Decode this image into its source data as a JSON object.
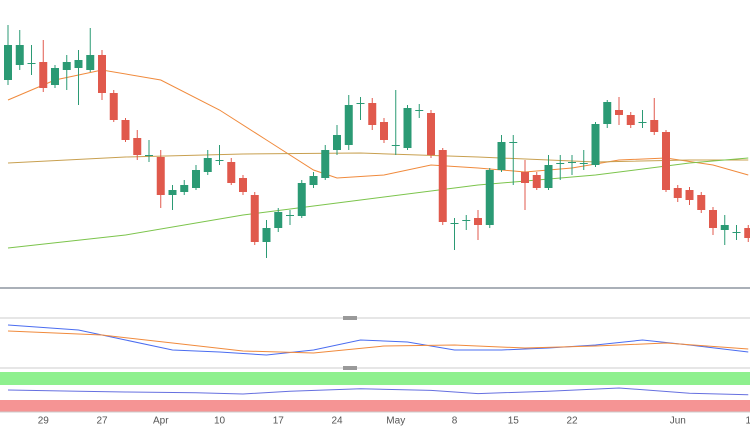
{
  "chart_data": [
    {
      "type": "candlestick",
      "categories": [
        null,
        null,
        null,
        "29",
        null,
        null,
        null,
        null,
        "27",
        null,
        null,
        null,
        null,
        "Apr",
        null,
        null,
        null,
        null,
        "10",
        null,
        null,
        null,
        null,
        "17",
        null,
        null,
        null,
        null,
        "24",
        null,
        null,
        null,
        null,
        "May",
        null,
        null,
        null,
        null,
        "8",
        null,
        null,
        null,
        null,
        "15",
        null,
        null,
        null,
        null,
        "22",
        null,
        null,
        null,
        null,
        null,
        null,
        null,
        null,
        "Jun",
        null,
        null,
        null,
        null,
        null,
        "1"
      ],
      "open": [
        208,
        223,
        225,
        226,
        203,
        218,
        220,
        218,
        233,
        195,
        168,
        150,
        133,
        131,
        93,
        96,
        100,
        116,
        128,
        126,
        110,
        93,
        46,
        60,
        73,
        72,
        103,
        110,
        138,
        143,
        185,
        185,
        166,
        143,
        140,
        178,
        175,
        138,
        65,
        68,
        70,
        63,
        118,
        146,
        116,
        113,
        100,
        125,
        126,
        125,
        123,
        164,
        178,
        173,
        166,
        168,
        156,
        100,
        98,
        93,
        78,
        58,
        56,
        60
      ],
      "high": [
        263,
        258,
        243,
        248,
        223,
        233,
        238,
        260,
        238,
        198,
        170,
        158,
        148,
        138,
        103,
        108,
        123,
        138,
        143,
        130,
        113,
        96,
        68,
        80,
        78,
        108,
        116,
        143,
        163,
        193,
        191,
        190,
        170,
        198,
        183,
        184,
        178,
        140,
        70,
        73,
        78,
        120,
        153,
        153,
        128,
        116,
        133,
        133,
        133,
        138,
        166,
        188,
        191,
        176,
        178,
        190,
        158,
        103,
        101,
        96,
        81,
        73,
        63,
        63
      ],
      "low": [
        203,
        218,
        213,
        196,
        200,
        198,
        183,
        216,
        188,
        166,
        146,
        128,
        126,
        80,
        78,
        93,
        98,
        113,
        123,
        103,
        93,
        43,
        30,
        56,
        63,
        70,
        100,
        108,
        133,
        138,
        168,
        158,
        145,
        133,
        138,
        170,
        130,
        63,
        38,
        58,
        48,
        60,
        116,
        103,
        78,
        98,
        98,
        108,
        113,
        118,
        121,
        160,
        163,
        160,
        160,
        153,
        96,
        86,
        83,
        75,
        53,
        43,
        48,
        46
      ],
      "close": [
        243,
        243,
        225,
        200,
        220,
        226,
        228,
        233,
        195,
        168,
        148,
        133,
        133,
        93,
        98,
        103,
        118,
        130,
        128,
        105,
        96,
        46,
        60,
        76,
        73,
        105,
        112,
        138,
        153,
        183,
        185,
        163,
        148,
        143,
        180,
        178,
        133,
        66,
        65,
        68,
        63,
        118,
        146,
        146,
        105,
        100,
        123,
        125,
        126,
        125,
        164,
        186,
        173,
        163,
        166,
        156,
        98,
        90,
        88,
        78,
        60,
        63,
        56,
        50
      ],
      "up_color": "#2b9a74",
      "down_color": "#e0594c",
      "series": [
        {
          "color": "#f08a3c",
          "x": [
            0,
            4,
            8,
            13,
            18,
            22,
            26,
            28,
            32,
            36,
            40,
            44,
            48,
            52,
            56,
            60,
            63
          ],
          "values": [
            188,
            208,
            218,
            208,
            178,
            148,
            118,
            110,
            113,
            123,
            120,
            116,
            120,
            128,
            130,
            123,
            113
          ]
        },
        {
          "color": "#c8a050",
          "x": [
            0,
            10,
            20,
            30,
            40,
            50,
            58,
            63
          ],
          "values": [
            125,
            131,
            134,
            135,
            131,
            126,
            128,
            128
          ]
        },
        {
          "color": "#7cc44c",
          "x": [
            0,
            10,
            20,
            30,
            40,
            50,
            58,
            63
          ],
          "values": [
            40,
            53,
            73,
            88,
            103,
            113,
            125,
            130
          ]
        }
      ],
      "ylim": [
        0,
        288
      ]
    },
    {
      "type": "line",
      "series": [
        {
          "color": "#4a6cf0",
          "x": [
            0,
            6,
            10,
            14,
            18,
            22,
            26,
            30,
            34,
            38,
            42,
            46,
            50,
            54,
            58,
            63
          ],
          "values": [
            18,
            13,
            3,
            -7,
            -9,
            -12,
            -7,
            3,
            1,
            -7,
            -7,
            -5,
            -2,
            3,
            -2,
            -9
          ]
        },
        {
          "color": "#f08a3c",
          "x": [
            0,
            8,
            14,
            20,
            26,
            32,
            38,
            44,
            50,
            56,
            63
          ],
          "values": [
            12,
            8,
            0,
            -8,
            -10,
            -3,
            -2,
            -5,
            -3,
            0,
            -6
          ]
        }
      ],
      "ylim": [
        -25,
        25
      ]
    },
    {
      "type": "line",
      "series": [
        {
          "color": "#6670e0",
          "x": [
            0,
            6,
            10,
            16,
            20,
            24,
            30,
            36,
            40,
            46,
            52,
            58,
            63
          ],
          "values": [
            55,
            52,
            50,
            48,
            45,
            52,
            58,
            54,
            46,
            52,
            60,
            47,
            43
          ]
        }
      ],
      "ylim": [
        0,
        100
      ]
    }
  ]
}
